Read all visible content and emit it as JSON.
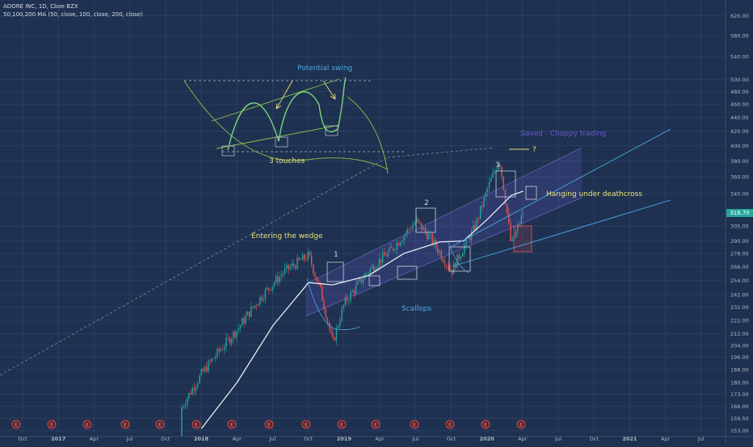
{
  "header": {
    "symbol_line": "ADORE INC, 1D, Cboe BZX",
    "indicator_line": "50,100,200 MA (50, close, 100, close, 200, close)"
  },
  "colors": {
    "background": "#1e3150",
    "grid": "#2a3f62",
    "candle_up": "#26a69a",
    "candle_down": "#ef5350",
    "ma": "#e8ecf2",
    "channel_fill": "#6a5acd",
    "trendline": "#4aa8e8",
    "annotation_yellow": "#e8e07a",
    "annotation_blue": "#4aa8e8",
    "annotation_green": "#8bc34a",
    "price_tag": "#26a69a"
  },
  "chart_data": {
    "type": "candlestick",
    "title": "ADORE INC, 1D, Cboe BZX",
    "y_axis": {
      "scale": "log",
      "ticks": [
        "620.00",
        "580.00",
        "540.00",
        "500.00",
        "480.00",
        "460.00",
        "440.00",
        "420.00",
        "400.00",
        "380.00",
        "360.00",
        "340.00",
        "318.70",
        "305.00",
        "290.00",
        "278.00",
        "266.00",
        "254.00",
        "242.00",
        "232.00",
        "222.00",
        "212.00",
        "204.00",
        "196.00",
        "188.00",
        "180.00",
        "173.00",
        "166.00",
        "159.50",
        "153.00"
      ],
      "last_price": "318.70",
      "range": [
        152,
        650
      ]
    },
    "x_axis": {
      "ticks": [
        "Oct",
        "2017",
        "Apr",
        "Jul",
        "Oct",
        "2018",
        "Apr",
        "Jul",
        "Oct",
        "2019",
        "Apr",
        "Jul",
        "Oct",
        "2020",
        "Apr",
        "Jul",
        "Oct",
        "2021",
        "Apr",
        "Jul"
      ]
    },
    "earnings_marker": "E",
    "earnings_count": 15,
    "annotations": [
      {
        "text": "Potential swing",
        "color": "blue"
      },
      {
        "text": "3 touches",
        "color": "yellow"
      },
      {
        "text": "Saved - Choppy trading",
        "color": "purple"
      },
      {
        "text": "?",
        "color": "yellow"
      },
      {
        "text": "Hanging under deathcross",
        "color": "yellow"
      },
      {
        "text": "Entering the wedge",
        "color": "yellow"
      },
      {
        "text": "Scallops",
        "color": "blue"
      },
      {
        "text": "1",
        "color": "white"
      },
      {
        "text": "2",
        "color": "white"
      },
      {
        "text": "3",
        "color": "white"
      }
    ],
    "moving_average_points": [
      [
        "2018-01",
        154
      ],
      [
        "2018-04",
        180
      ],
      [
        "2018-07",
        218
      ],
      [
        "2018-10",
        252
      ],
      [
        "2018-12",
        250
      ],
      [
        "2019-03",
        258
      ],
      [
        "2019-06",
        278
      ],
      [
        "2019-09",
        289
      ],
      [
        "2019-11",
        290
      ],
      [
        "2020-01",
        312
      ],
      [
        "2020-03",
        338
      ],
      [
        "2020-04",
        343
      ]
    ],
    "price_path": [
      [
        "2017-10",
        150
      ],
      [
        "2018-01",
        185
      ],
      [
        "2018-04",
        215
      ],
      [
        "2018-06",
        240
      ],
      [
        "2018-08",
        262
      ],
      [
        "2018-10",
        276
      ],
      [
        "2018-11",
        245
      ],
      [
        "2018-12",
        205
      ],
      [
        "2019-01",
        235
      ],
      [
        "2019-03",
        262
      ],
      [
        "2019-05",
        282
      ],
      [
        "2019-07",
        310
      ],
      [
        "2019-08",
        296
      ],
      [
        "2019-10",
        262
      ],
      [
        "2019-12",
        305
      ],
      [
        "2020-01",
        345
      ],
      [
        "2020-02",
        382
      ],
      [
        "2020-03",
        285
      ],
      [
        "2020-04",
        318.7
      ]
    ]
  }
}
